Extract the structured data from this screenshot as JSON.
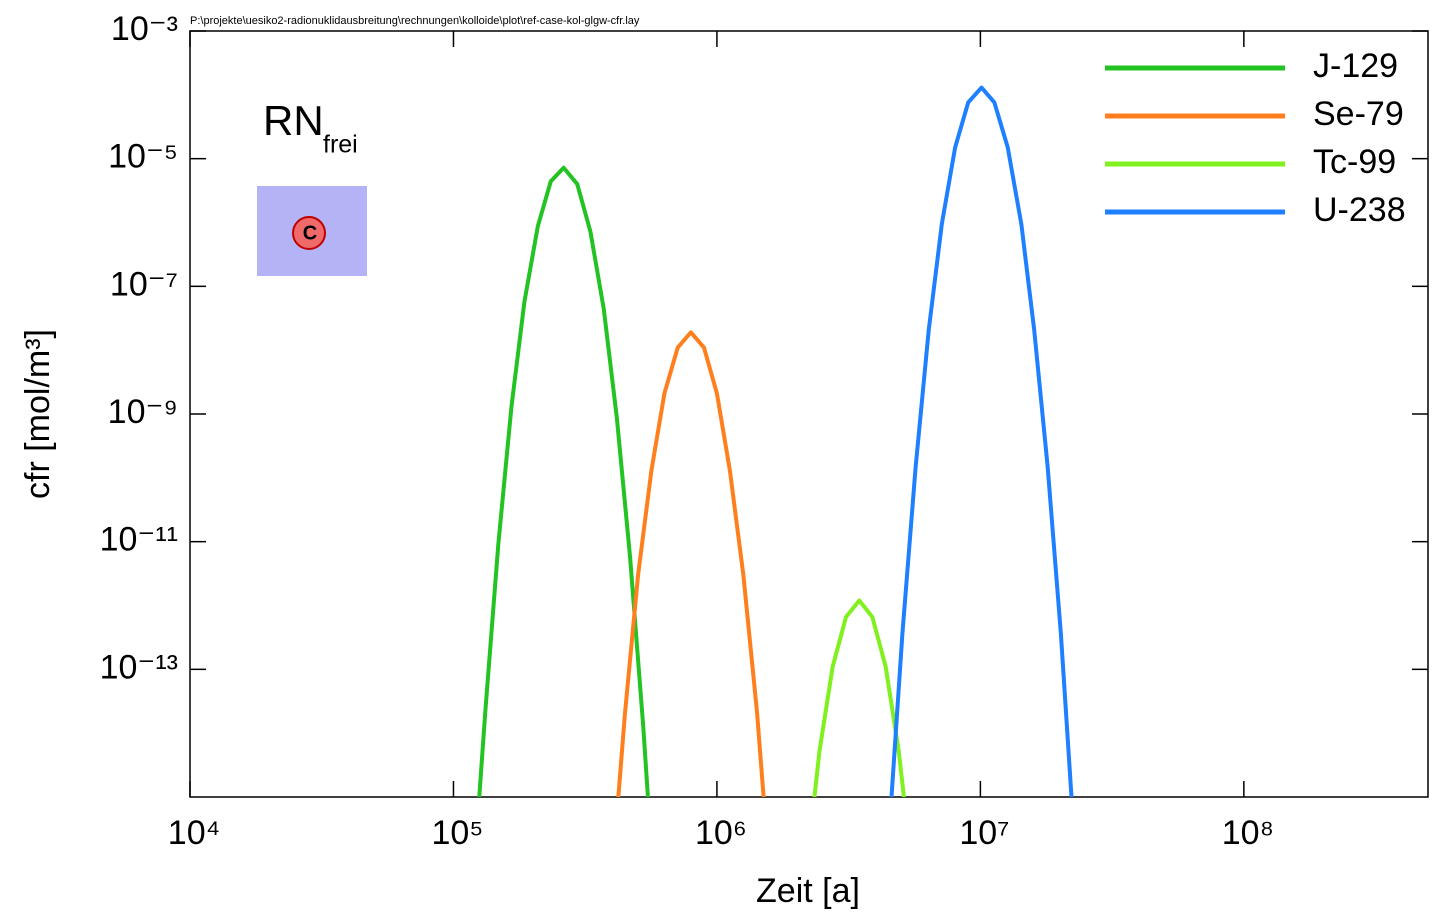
{
  "chart_data": {
    "type": "line",
    "file_path": "P:\\projekte\\uesiko2-radionuklidausbreitung\\rechnungen\\kolloide\\plot\\ref-case-kol-glgw-cfr.lay",
    "annotation": {
      "text": "RN",
      "subscript": "frei",
      "icon_label": "C"
    },
    "xlabel": "Zeit [a]",
    "ylabel": "cfr [mol/m³]",
    "xscale": "log",
    "yscale": "log",
    "xlim": [
      10000,
      500000000
    ],
    "ylim": [
      1e-15,
      0.001
    ],
    "xticks": [
      {
        "value": 10000,
        "label": "10⁴"
      },
      {
        "value": 100000,
        "label": "10⁵"
      },
      {
        "value": 1000000,
        "label": "10⁶"
      },
      {
        "value": 10000000,
        "label": "10⁷"
      },
      {
        "value": 100000000,
        "label": "10⁸"
      }
    ],
    "yticks": [
      {
        "value": 0.001,
        "label": "10⁻³"
      },
      {
        "value": 1e-05,
        "label": "10⁻⁵"
      },
      {
        "value": 1e-07,
        "label": "10⁻⁷"
      },
      {
        "value": 1e-09,
        "label": "10⁻⁹"
      },
      {
        "value": 1e-11,
        "label": "10⁻¹¹"
      },
      {
        "value": 1e-13,
        "label": "10⁻¹³"
      }
    ],
    "grid": false,
    "legend": "upper right",
    "series": [
      {
        "name": "J-129",
        "color": "#22c322",
        "x": [
          123000,
          132000,
          148000,
          166000,
          186000,
          209000,
          234000,
          262000,
          295000,
          331000,
          372000,
          417000,
          468000,
          525000,
          562000
        ],
        "values": [
          3.4e-16,
          2.1e-14,
          9.1e-12,
          1.3e-09,
          5.8e-08,
          8.7e-07,
          4.4e-06,
          7.2e-06,
          4e-06,
          7.2e-07,
          4.4e-08,
          8.7e-10,
          5.8e-12,
          1.3e-14,
          1.9e-16
        ]
      },
      {
        "name": "Se-79",
        "color": "#ff7f1e",
        "x": [
          399000,
          448000,
          502000,
          564000,
          632000,
          710000,
          796000,
          893000,
          1000000,
          1120000,
          1260000,
          1420000,
          1590000
        ],
        "values": [
          5.2e-17,
          2.1e-14,
          3e-12,
          1.3e-10,
          2.1e-09,
          1.1e-08,
          1.9e-08,
          1.1e-08,
          2.1e-09,
          1.3e-10,
          3e-12,
          2.1e-14,
          5.2e-17
        ]
      },
      {
        "name": "Tc-99",
        "color": "#80f01e",
        "x": [
          2190000,
          2450000,
          2750000,
          3090000,
          3470000,
          3890000,
          4370000,
          4900000,
          5500000
        ],
        "values": [
          7.6e-17,
          5.2e-15,
          1.1e-13,
          6.6e-13,
          1.2e-12,
          6.6e-13,
          1.1e-13,
          5.2e-15,
          7.6e-17
        ]
      },
      {
        "name": "U-238",
        "color": "#1e7fff",
        "x": [
          4510000,
          5060000,
          5680000,
          6370000,
          7140000,
          8020000,
          8990000,
          10100000,
          11300000,
          12700000,
          14300000,
          16000000,
          18000000,
          20200000,
          22600000
        ],
        "values": [
          3e-16,
          3.7e-13,
          1.5e-10,
          2.1e-08,
          9.5e-07,
          1.5e-05,
          7.6e-05,
          0.00013,
          7.6e-05,
          1.5e-05,
          9.5e-07,
          2.1e-08,
          1.5e-10,
          3.7e-13,
          3e-16
        ]
      }
    ]
  }
}
